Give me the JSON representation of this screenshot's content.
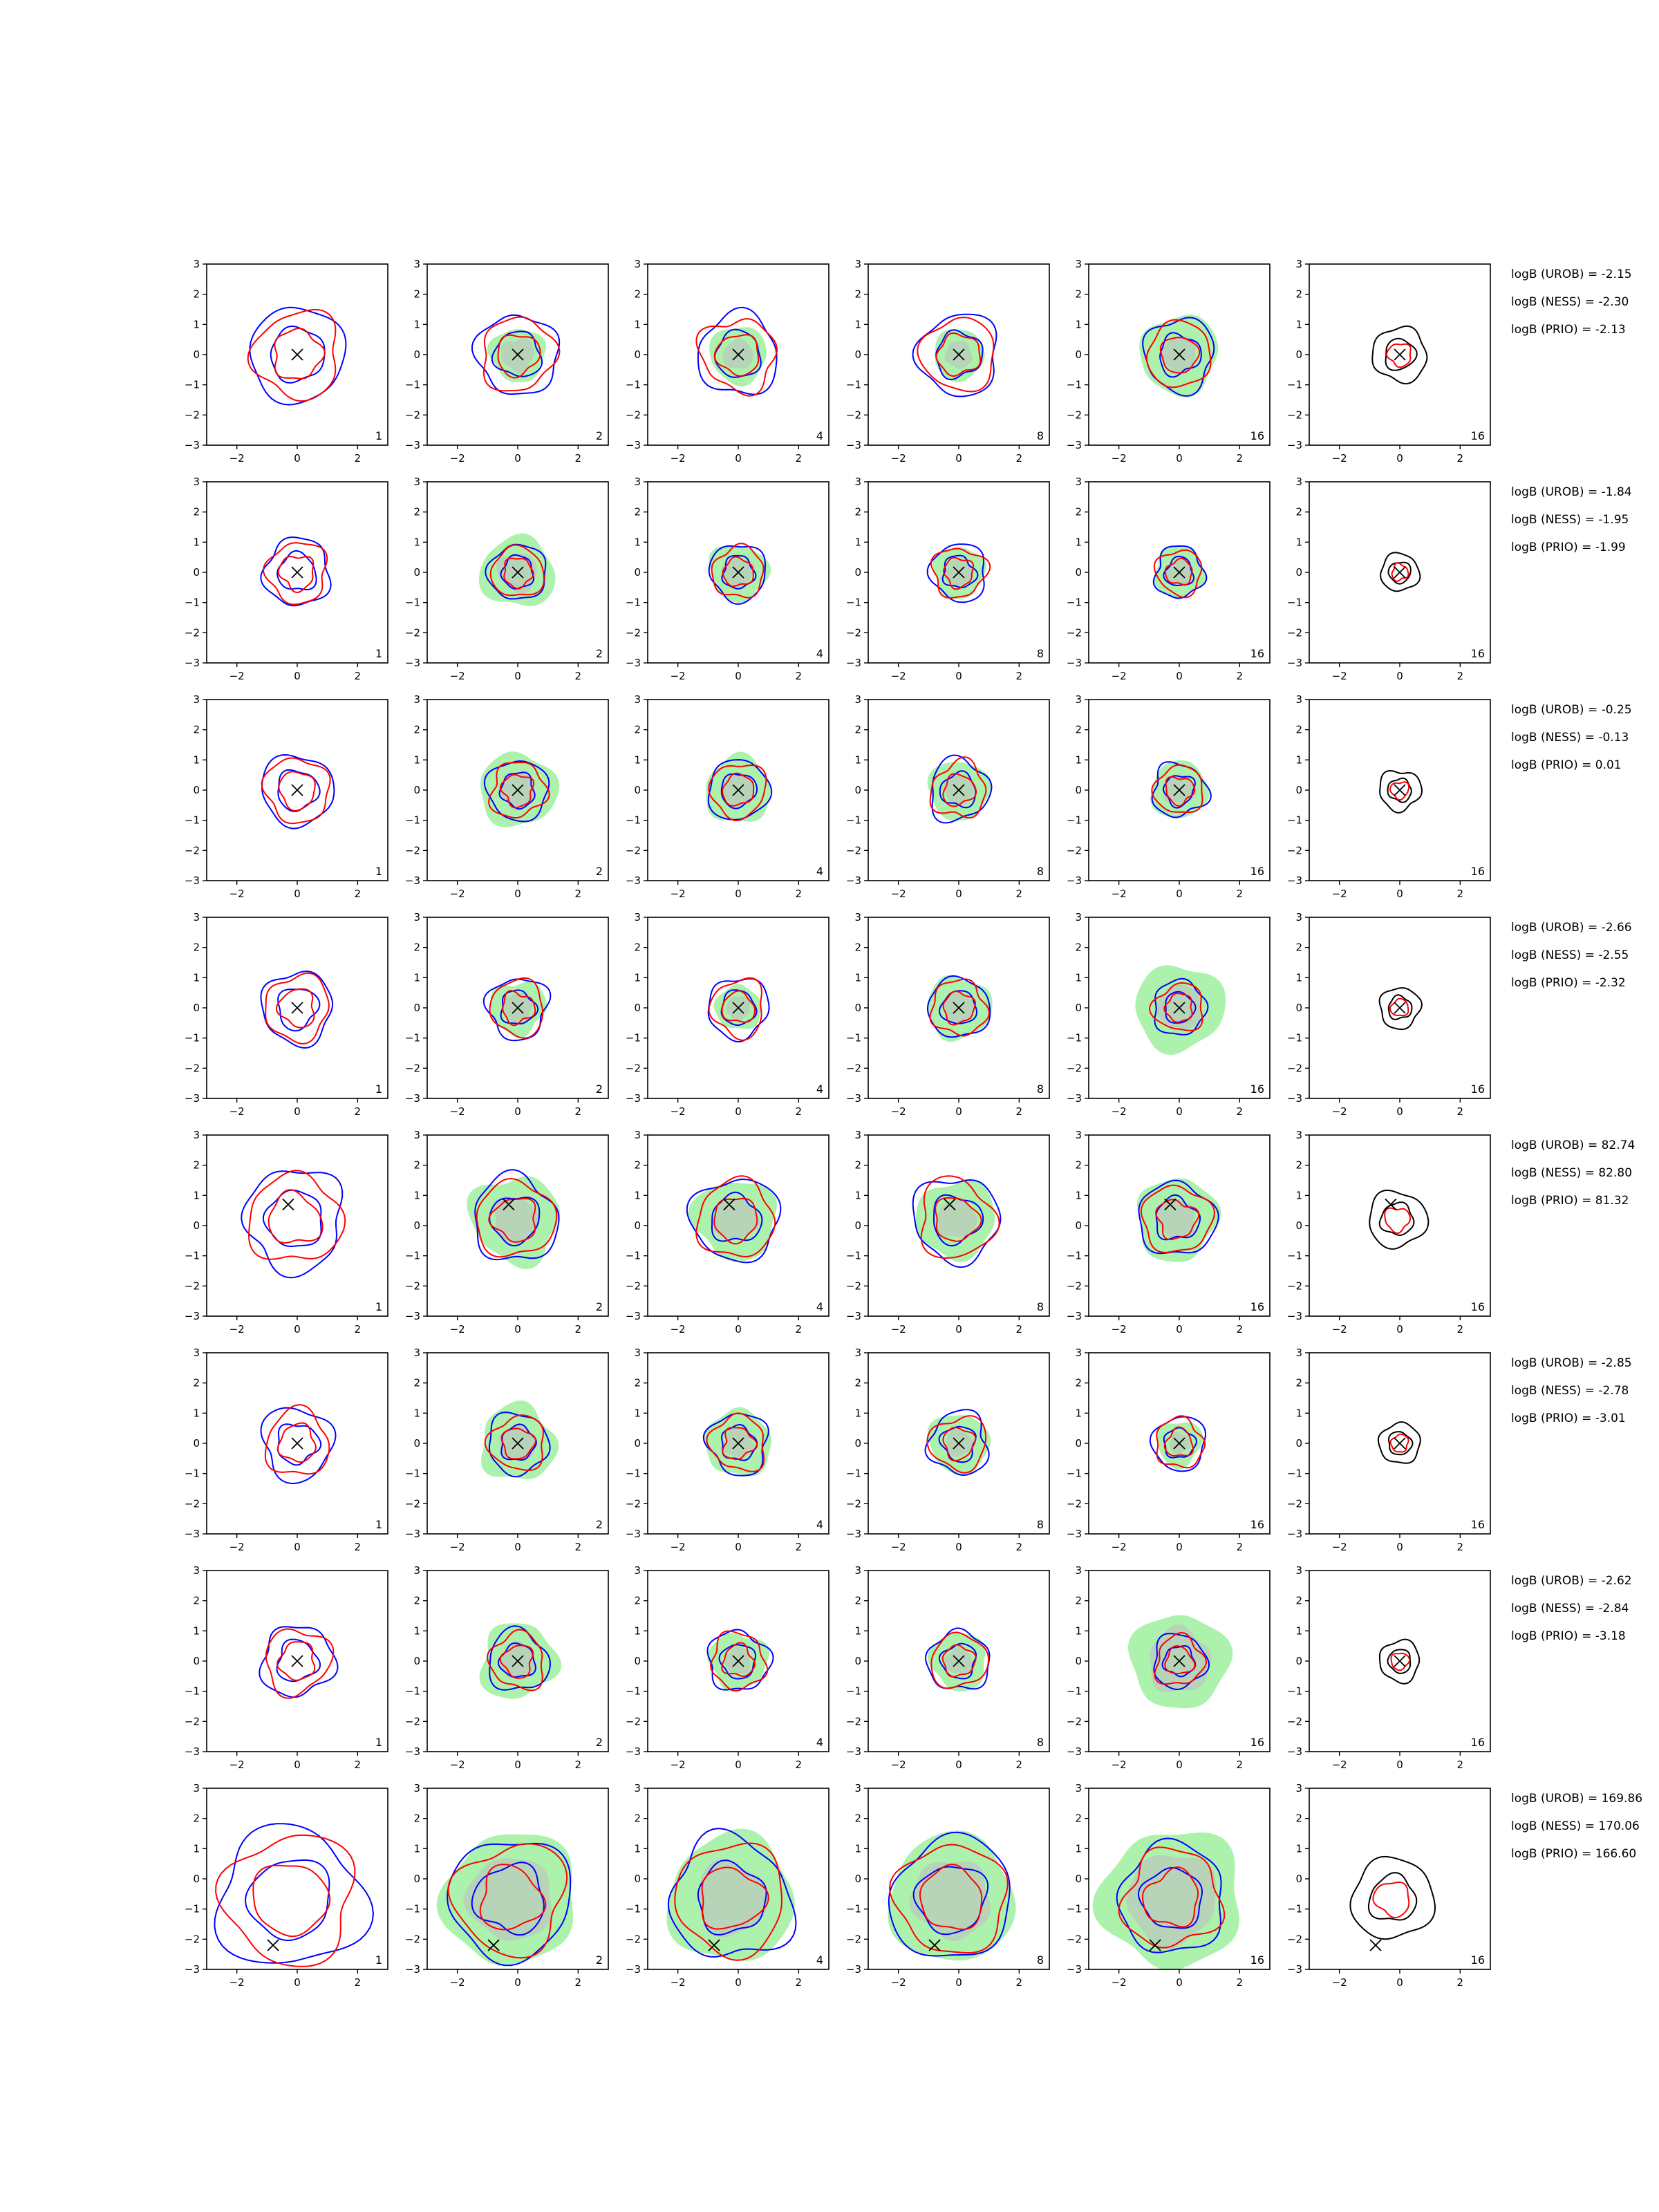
{
  "chart_data": {
    "type": "contour",
    "layout": {
      "rows": 8,
      "cols": 6
    },
    "xlim": [
      -3,
      3
    ],
    "ylim": [
      -3,
      3
    ],
    "xticks": [
      -2,
      0,
      2
    ],
    "yticks": [
      3,
      2,
      1,
      0,
      -1,
      -2,
      -3
    ],
    "ytick_labels": [
      "3",
      "2",
      "1",
      "0",
      "−1",
      "−2",
      "−3"
    ],
    "xtick_labels": [
      "−2",
      "0",
      "2"
    ],
    "column_labels": [
      "1",
      "2",
      "4",
      "8",
      "16",
      "16"
    ],
    "colors": {
      "blue": "#0000ff",
      "red": "#ff0000",
      "black": "#000000",
      "green_fill": "#90ee90",
      "gray_fill": "#c0c0c0"
    },
    "rows": [
      {
        "marker": [
          0,
          0
        ],
        "scale": 1.0,
        "green": [
          0,
          0.9,
          0.95,
          0.85,
          1.3,
          0
        ],
        "gray": [
          0,
          0.55,
          0.5,
          0.45,
          0.6,
          0
        ],
        "annotations": [
          "logB (UROB) = -2.15",
          "logB (NESS) = -2.30",
          "logB (PRIO) = -2.13"
        ]
      },
      {
        "marker": [
          0,
          0
        ],
        "scale": 0.7,
        "green": [
          0,
          1.2,
          0.95,
          0.85,
          0.85,
          0
        ],
        "gray": [
          0,
          0.65,
          0.5,
          0.45,
          0.45,
          0
        ],
        "annotations": [
          "logB (UROB) = -1.84",
          "logB (NESS) = -1.95",
          "logB (PRIO) = -1.99"
        ]
      },
      {
        "marker": [
          0,
          0
        ],
        "scale": 0.75,
        "green": [
          0,
          1.25,
          1.1,
          1.0,
          0.95,
          0
        ],
        "gray": [
          0,
          0.6,
          0.55,
          0.5,
          0.5,
          0
        ],
        "annotations": [
          "logB (UROB) = -0.25",
          "logB (NESS) = -0.13",
          "logB (PRIO) = 0.01"
        ]
      },
      {
        "marker": [
          0,
          0
        ],
        "scale": 0.75,
        "green": [
          0,
          0.9,
          0.75,
          1.05,
          1.45,
          0
        ],
        "gray": [
          0,
          0.5,
          0.4,
          0.5,
          0.75,
          0
        ],
        "annotations": [
          "logB (UROB) = -2.66",
          "logB (NESS) = -2.55",
          "logB (PRIO) = -2.32"
        ]
      },
      {
        "marker": [
          -0.3,
          0.7
        ],
        "scale": 1.05,
        "green": [
          0,
          1.45,
          1.35,
          1.3,
          1.35,
          0
        ],
        "gray": [
          0,
          0.75,
          0.7,
          0.65,
          0.65,
          0
        ],
        "annotations": [
          "logB (UROB) = 82.74",
          "logB (NESS) = 82.80",
          "logB (PRIO) = 81.32"
        ]
      },
      {
        "marker": [
          0,
          0
        ],
        "scale": 0.75,
        "green": [
          0,
          1.25,
          1.1,
          1.0,
          0.75,
          0
        ],
        "gray": [
          0,
          0.6,
          0.5,
          0.45,
          0.35,
          0
        ],
        "annotations": [
          "logB (UROB) = -2.85",
          "logB (NESS) = -2.78",
          "logB (PRIO) = -3.01"
        ]
      },
      {
        "marker": [
          0,
          0
        ],
        "scale": 0.75,
        "green": [
          0,
          1.25,
          0.95,
          0.95,
          1.6,
          0
        ],
        "gray": [
          0,
          0.6,
          0.45,
          0.45,
          1.05,
          0
        ],
        "annotations": [
          "logB (UROB) = -2.62",
          "logB (NESS) = -2.84",
          "logB (PRIO) = -3.18"
        ]
      },
      {
        "marker": [
          -0.8,
          -2.2
        ],
        "scale": 1.5,
        "green": [
          0,
          2.2,
          2.1,
          2.1,
          2.3,
          0
        ],
        "gray": [
          0,
          1.4,
          1.2,
          1.3,
          1.5,
          0
        ],
        "annotations": [
          "logB (UROB) = 169.86",
          "logB (NESS) = 170.06",
          "logB (PRIO) = 166.60"
        ]
      }
    ]
  }
}
